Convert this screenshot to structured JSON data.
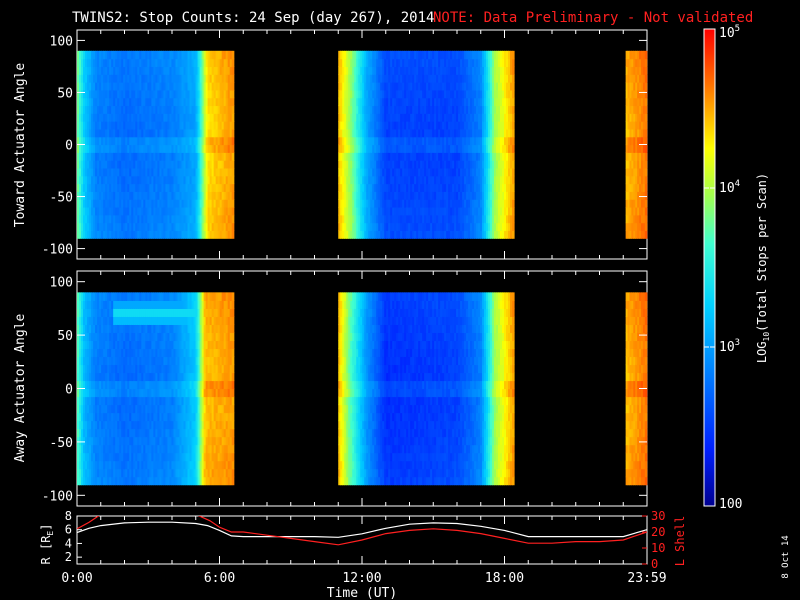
{
  "title": {
    "main": "TWINS2: Stop Counts: 24 Sep (day 267), 2014",
    "note": "NOTE: Data Preliminary - Not validated"
  },
  "panels": {
    "toward": {
      "ylabel": "Toward Actuator Angle",
      "yticks": [
        {
          "v": 100,
          "label": "100"
        },
        {
          "v": 50,
          "label": "50"
        },
        {
          "v": 0,
          "label": "0"
        },
        {
          "v": -50,
          "label": "-50"
        },
        {
          "v": -100,
          "label": "-100"
        }
      ]
    },
    "away": {
      "ylabel": "Away Actuator Angle",
      "yticks": [
        {
          "v": 100,
          "label": "100"
        },
        {
          "v": 50,
          "label": "50"
        },
        {
          "v": 0,
          "label": "0"
        },
        {
          "v": -50,
          "label": "-50"
        },
        {
          "v": -100,
          "label": "-100"
        }
      ]
    },
    "orbit": {
      "left_label": "R [R",
      "left_sub": "E",
      "left_close": "]",
      "right_label": "L Shell",
      "left_ticks": [
        "8",
        "6",
        "4",
        "2"
      ],
      "right_ticks": [
        "30",
        "20",
        "10",
        "0"
      ]
    }
  },
  "colorbar": {
    "label_pre": "LOG",
    "label_sub": "10",
    "label_post": "(Total Stops per Scan)",
    "ticks": [
      {
        "base": "10",
        "exp": "5",
        "v": 5
      },
      {
        "base": "10",
        "exp": "4",
        "v": 4
      },
      {
        "base": "10",
        "exp": "3",
        "v": 3
      },
      {
        "base": "100",
        "exp": "",
        "v": 2
      }
    ],
    "range": [
      2,
      5
    ]
  },
  "xaxis": {
    "label": "Time (UT)",
    "ticks": [
      {
        "h": 0,
        "label": "0:00"
      },
      {
        "h": 6,
        "label": "6:00"
      },
      {
        "h": 12,
        "label": "12:00"
      },
      {
        "h": 18,
        "label": "18:00"
      },
      {
        "h": 24,
        "label": "23:59"
      }
    ],
    "range": [
      0,
      24
    ]
  },
  "footer": {
    "date": "8 Oct 14"
  },
  "colors": {
    "title": "#ffffff",
    "note": "#ff2020",
    "l_shell": "#ff2020",
    "radius": "#ffffff"
  },
  "chart_data": [
    {
      "type": "heatmap",
      "title": "Toward Actuator Angle",
      "x_units": "hours UT",
      "y_units": "degrees",
      "ylim": [
        -110,
        110
      ],
      "data_blocks": [
        {
          "start": 0.0,
          "end": 6.6,
          "angle_range": [
            -90,
            90
          ]
        },
        {
          "start": 11.0,
          "end": 18.4,
          "angle_range": [
            -90,
            90
          ]
        },
        {
          "start": 23.1,
          "end": 23.99,
          "angle_range": [
            -90,
            90
          ]
        }
      ],
      "value_profile_log10": [
        {
          "t": 0.0,
          "v": 3.9
        },
        {
          "t": 0.3,
          "v": 3.3
        },
        {
          "t": 0.8,
          "v": 2.9
        },
        {
          "t": 2.0,
          "v": 2.8
        },
        {
          "t": 4.0,
          "v": 2.9
        },
        {
          "t": 5.0,
          "v": 3.1
        },
        {
          "t": 5.5,
          "v": 4.4
        },
        {
          "t": 6.6,
          "v": 4.6
        },
        {
          "t": 11.0,
          "v": 4.5
        },
        {
          "t": 11.5,
          "v": 4.0
        },
        {
          "t": 12.2,
          "v": 3.1
        },
        {
          "t": 13.0,
          "v": 2.6
        },
        {
          "t": 16.0,
          "v": 2.6
        },
        {
          "t": 17.0,
          "v": 2.9
        },
        {
          "t": 17.6,
          "v": 4.0
        },
        {
          "t": 18.4,
          "v": 4.6
        },
        {
          "t": 23.1,
          "v": 4.5
        },
        {
          "t": 23.99,
          "v": 4.7
        }
      ]
    },
    {
      "type": "heatmap",
      "title": "Away Actuator Angle",
      "x_units": "hours UT",
      "y_units": "degrees",
      "ylim": [
        -110,
        110
      ],
      "data_blocks": [
        {
          "start": 0.0,
          "end": 6.6,
          "angle_range": [
            -90,
            90
          ]
        },
        {
          "start": 11.0,
          "end": 18.4,
          "angle_range": [
            -90,
            90
          ]
        },
        {
          "start": 23.1,
          "end": 23.99,
          "angle_range": [
            -90,
            90
          ]
        }
      ],
      "band_feature": {
        "angle": 70,
        "peak_log10": 3.4,
        "time_range": [
          1.5,
          5.5
        ]
      },
      "value_profile_log10": [
        {
          "t": 0.0,
          "v": 3.8
        },
        {
          "t": 0.3,
          "v": 3.2
        },
        {
          "t": 0.8,
          "v": 2.9
        },
        {
          "t": 2.0,
          "v": 2.8
        },
        {
          "t": 4.0,
          "v": 2.9
        },
        {
          "t": 5.0,
          "v": 3.3
        },
        {
          "t": 5.4,
          "v": 4.5
        },
        {
          "t": 6.6,
          "v": 4.6
        },
        {
          "t": 11.0,
          "v": 4.5
        },
        {
          "t": 11.5,
          "v": 3.8
        },
        {
          "t": 12.2,
          "v": 3.0
        },
        {
          "t": 13.0,
          "v": 2.5
        },
        {
          "t": 16.0,
          "v": 2.6
        },
        {
          "t": 17.0,
          "v": 2.9
        },
        {
          "t": 17.6,
          "v": 4.0
        },
        {
          "t": 18.4,
          "v": 4.6
        },
        {
          "t": 23.1,
          "v": 4.5
        },
        {
          "t": 23.99,
          "v": 4.7
        }
      ]
    },
    {
      "type": "line",
      "title": "",
      "xlim": [
        0,
        24
      ],
      "ylim_left": [
        1,
        8
      ],
      "ylim_right": [
        0,
        30
      ],
      "series": [
        {
          "name": "R [RE]",
          "axis": "left",
          "x": [
            0,
            0.5,
            1,
            2,
            3,
            4,
            5,
            5.5,
            6,
            6.5,
            7,
            8,
            9,
            10,
            11,
            12,
            13,
            14,
            15,
            16,
            17,
            18,
            19,
            20,
            21,
            22,
            23,
            23.99
          ],
          "y": [
            5.6,
            6.2,
            6.6,
            7.0,
            7.1,
            7.1,
            6.9,
            6.6,
            5.9,
            5.1,
            5.0,
            5.0,
            5.0,
            5.0,
            4.9,
            5.4,
            6.2,
            6.8,
            7.0,
            6.9,
            6.5,
            5.9,
            5.0,
            5.0,
            5.0,
            5.0,
            5.0,
            6.0
          ]
        },
        {
          "name": "L Shell",
          "axis": "right",
          "x": [
            0,
            0.5,
            1,
            5,
            5.6,
            6,
            6.5,
            7,
            8,
            9,
            10,
            11,
            12,
            13,
            14,
            15,
            16,
            17,
            18,
            19,
            20,
            21,
            22,
            23,
            23.99
          ],
          "y": [
            22,
            26,
            31,
            31,
            27,
            23,
            20,
            20,
            18,
            16,
            14,
            12,
            15,
            19,
            21,
            22,
            21,
            19,
            16,
            13,
            13,
            14,
            14,
            15,
            20
          ]
        }
      ]
    }
  ]
}
